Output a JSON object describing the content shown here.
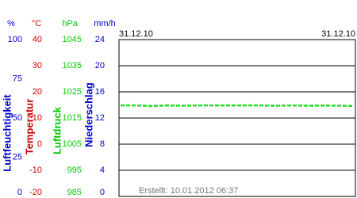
{
  "chart_data": {
    "type": "line",
    "x_labels": [
      "31.12.10",
      "31.12.10"
    ],
    "annotation": "Erstellt: 10.01.2012 06:37",
    "grid": true,
    "y_axes": [
      {
        "unit": "%",
        "label": "Luftfeuchtigkeit",
        "color": "#0000cc",
        "ylim": [
          0,
          100
        ],
        "yticks": [
          0,
          25,
          50,
          75,
          100
        ]
      },
      {
        "unit": "°C",
        "label": "Temperatur",
        "color": "#cc0000",
        "ylim": [
          -20,
          40
        ],
        "yticks": [
          -20,
          -10,
          0,
          10,
          20,
          30,
          40
        ]
      },
      {
        "unit": "hPa",
        "label": "Luftdruck",
        "color": "#00cc00",
        "ylim": [
          985,
          1045
        ],
        "yticks": [
          985,
          995,
          1005,
          1015,
          1025,
          1035,
          1045
        ]
      },
      {
        "unit": "mm/h",
        "label": "Niederschlag",
        "color": "#0000cc",
        "ylim": [
          0,
          24
        ],
        "yticks": [
          0,
          4,
          8,
          12,
          16,
          20,
          24
        ]
      }
    ],
    "series": [
      {
        "name": "Luftdruck",
        "color": "#22dd22",
        "axis": 2,
        "values": [
          1019.8,
          1019.8,
          1019.6,
          1019.8,
          1019.7,
          1019.8,
          1019.8,
          1019.8,
          1019.8,
          1019.8,
          1019.7,
          1019.8,
          1019.7,
          1019.8,
          1019.7,
          1019.6
        ]
      }
    ]
  }
}
